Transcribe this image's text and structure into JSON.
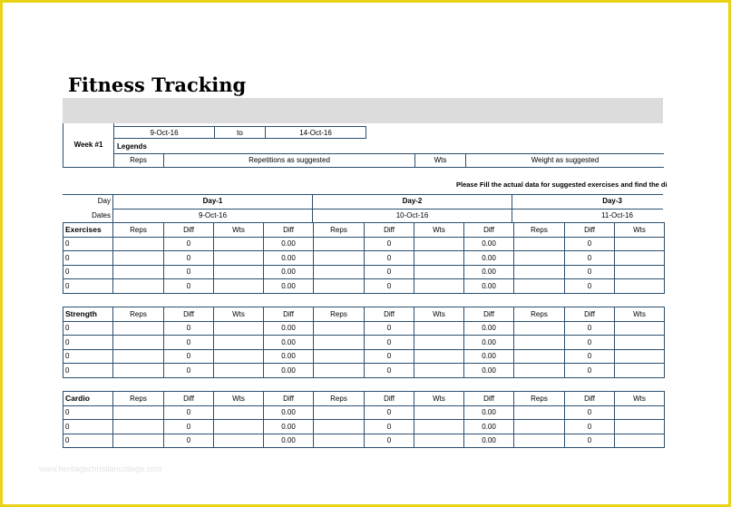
{
  "title": "Fitness Tracking",
  "week": {
    "label": "Week #1",
    "start_date": "9-Oct-16",
    "to": "to",
    "end_date": "14-Oct-16",
    "legends_label": "Legends",
    "legend_reps": "Reps",
    "legend_reps_desc": "Repetitions as suggested",
    "legend_wts": "Wts",
    "legend_wts_desc": "Weight as suggested"
  },
  "note": "Please Fill the actual data for suggested exercises and find the di",
  "days_header": {
    "day_label": "Day",
    "dates_label": "Dates",
    "days": [
      {
        "name": "Day-1",
        "date": "9-Oct-16"
      },
      {
        "name": "Day-2",
        "date": "10-Oct-16"
      },
      {
        "name": "Day-3",
        "date": "11-Oct-16"
      }
    ]
  },
  "columns": [
    "Reps",
    "Diff",
    "Wts",
    "Diff"
  ],
  "sections": [
    {
      "label": "Exercises",
      "rows": [
        {
          "name": "0",
          "diff1": "0",
          "diff2": "0.00"
        },
        {
          "name": "0",
          "diff1": "0",
          "diff2": "0.00"
        },
        {
          "name": "0",
          "diff1": "0",
          "diff2": "0.00"
        },
        {
          "name": "0",
          "diff1": "0",
          "diff2": "0.00"
        }
      ]
    },
    {
      "label": "Strength",
      "rows": [
        {
          "name": "0",
          "diff1": "0",
          "diff2": "0.00"
        },
        {
          "name": "0",
          "diff1": "0",
          "diff2": "0.00"
        },
        {
          "name": "0",
          "diff1": "0",
          "diff2": "0.00"
        },
        {
          "name": "0",
          "diff1": "0",
          "diff2": "0.00"
        }
      ]
    },
    {
      "label": "Cardio",
      "rows": [
        {
          "name": "0",
          "diff1": "0",
          "diff2": "0.00"
        },
        {
          "name": "0",
          "diff1": "0",
          "diff2": "0.00"
        },
        {
          "name": "0",
          "diff1": "0",
          "diff2": "0.00"
        }
      ]
    }
  ],
  "watermark": "www.heritagechristiancollege.com"
}
